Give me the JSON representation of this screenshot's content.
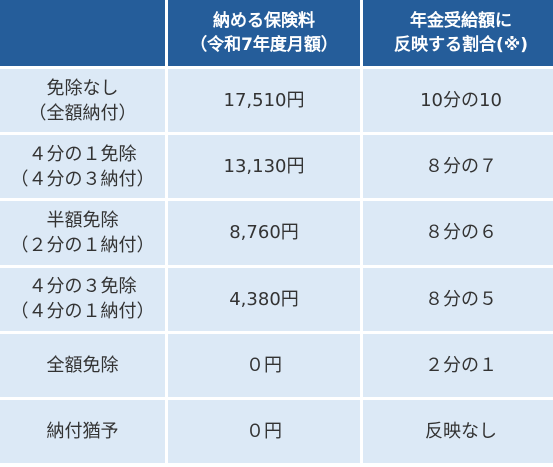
{
  "table": {
    "header": [
      [],
      [
        "納める保険料",
        "（令和7年度月額）"
      ],
      [
        "年金受給額に",
        "反映する割合(※)"
      ]
    ],
    "rows": [
      [
        [
          "免除なし",
          "（全額納付）"
        ],
        [
          "17,510円"
        ],
        [
          "10分の10"
        ]
      ],
      [
        [
          "４分の１免除",
          "（４分の３納付）"
        ],
        [
          "13,130円"
        ],
        [
          "８分の７"
        ]
      ],
      [
        [
          "半額免除",
          "（２分の１納付）"
        ],
        [
          "8,760円"
        ],
        [
          "８分の６"
        ]
      ],
      [
        [
          "４分の３免除",
          "（４分の１納付）"
        ],
        [
          "4,380円"
        ],
        [
          "８分の５"
        ]
      ],
      [
        [
          "全額免除"
        ],
        [
          "０円"
        ],
        [
          "２分の１"
        ]
      ],
      [
        [
          "納付猶予"
        ],
        [
          "０円"
        ],
        [
          "反映なし"
        ]
      ]
    ]
  }
}
